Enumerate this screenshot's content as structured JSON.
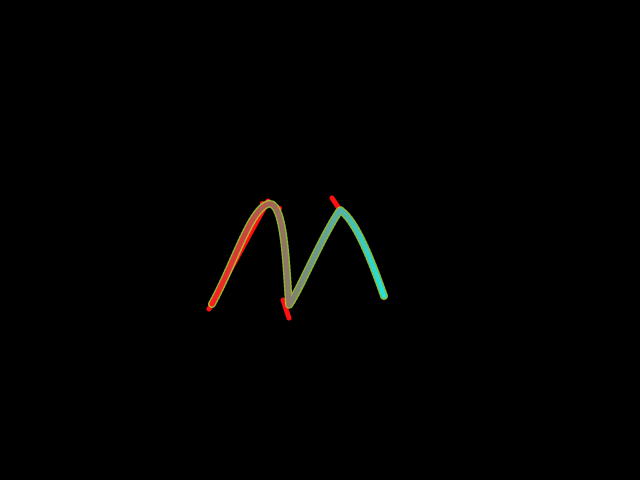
{
  "canvas": {
    "background": "#000000"
  },
  "drawing": {
    "description_shape": "letter-m-stroke",
    "colors": {
      "red_stroke": "#ff1010",
      "gradient_start": "#ff1a1a",
      "gradient_mid": "#8a7a6a",
      "gradient_end": "#22e3dc",
      "dotted_outline": "#a6d63a"
    }
  }
}
